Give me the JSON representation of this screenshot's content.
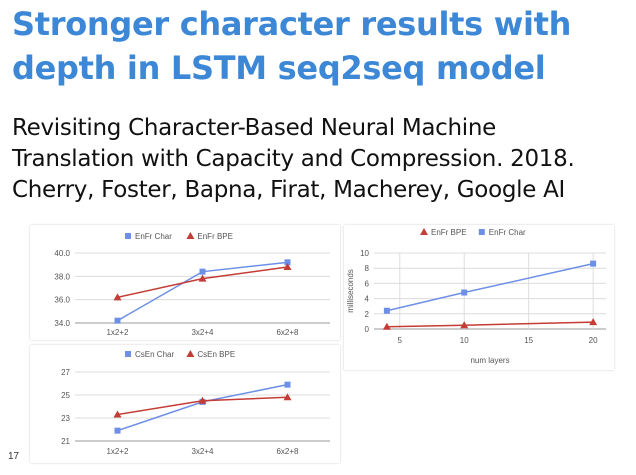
{
  "slide": {
    "title_line1": "Stronger character results with",
    "title_line2": "depth in LSTM seq2seq model",
    "subtitle_line1": "Revisiting Character-Based Neural Machine",
    "subtitle_line2": "Translation with Capacity and Compression. 2018.",
    "subtitle_line3": "Cherry, Foster, Bapna, Firat, Macherey, Google AI",
    "slide_number": "17"
  },
  "colors": {
    "title": "#3c87d6",
    "char_series": "#6d8fe6",
    "bpe_series": "#c43c36"
  },
  "chart_data": [
    {
      "id": "enfr",
      "type": "line",
      "categories": [
        "1x2+2",
        "3x2+4",
        "6x2+8"
      ],
      "series": [
        {
          "name": "EnFr Char",
          "values": [
            34.2,
            38.4,
            39.2
          ],
          "color": "#6d8fe6",
          "marker": "square"
        },
        {
          "name": "EnFr BPE",
          "values": [
            36.2,
            37.8,
            38.8
          ],
          "color": "#c43c36",
          "marker": "triangle"
        }
      ],
      "ylim": [
        34,
        40
      ],
      "yticks": [
        34.0,
        36.0,
        38.0,
        40.0
      ],
      "ytick_labels": [
        "34.0",
        "36.0",
        "38.0",
        "40.0"
      ],
      "legend": "top",
      "grid": true
    },
    {
      "id": "csen",
      "type": "line",
      "categories": [
        "1x2+2",
        "3x2+4",
        "6x2+8"
      ],
      "series": [
        {
          "name": "CsEn Char",
          "values": [
            21.9,
            24.4,
            25.9
          ],
          "color": "#6d8fe6",
          "marker": "square"
        },
        {
          "name": "CsEn BPE",
          "values": [
            23.3,
            24.5,
            24.8
          ],
          "color": "#c43c36",
          "marker": "triangle"
        }
      ],
      "ylim": [
        21,
        27
      ],
      "yticks": [
        21,
        23,
        25,
        27
      ],
      "ytick_labels": [
        "21",
        "23",
        "25",
        "27"
      ],
      "legend": "top",
      "grid": true
    },
    {
      "id": "time",
      "type": "line",
      "x": [
        4,
        10,
        20
      ],
      "series": [
        {
          "name": "EnFr BPE",
          "values": [
            0.3,
            0.5,
            0.9
          ],
          "color": "#c43c36",
          "marker": "triangle"
        },
        {
          "name": "EnFr Char",
          "values": [
            2.4,
            4.8,
            8.6
          ],
          "color": "#6d8fe6",
          "marker": "square"
        }
      ],
      "xlim": [
        3,
        21
      ],
      "xticks": [
        5,
        10,
        15,
        20
      ],
      "ylim": [
        0,
        10
      ],
      "yticks": [
        0,
        2,
        4,
        6,
        8,
        10
      ],
      "xlabel": "num layers",
      "ylabel": "milliseconds",
      "legend": "top",
      "grid": true
    }
  ]
}
